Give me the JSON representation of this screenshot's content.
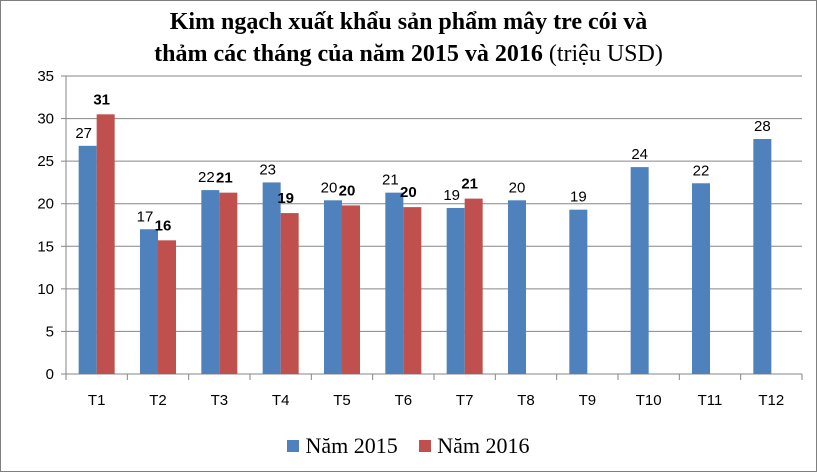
{
  "chart_data": {
    "type": "bar",
    "title_line1": "Kim ngạch xuất khẩu sản phẩm mây tre cói và",
    "title_line2": "thảm các tháng của năm 2015 và 2016",
    "title_unit": "(triệu USD)",
    "xlabel": "",
    "ylabel": "",
    "ylim": [
      0,
      35
    ],
    "yticks": [
      "0",
      "5",
      "10",
      "15",
      "20",
      "25",
      "30",
      "35"
    ],
    "categories": [
      "T1",
      "T2",
      "T3",
      "T4",
      "T5",
      "T6",
      "T7",
      "T8",
      "T9",
      "T10",
      "T11",
      "T12"
    ],
    "grid": true,
    "legend_position": "bottom",
    "series": [
      {
        "name": "Năm 2015",
        "color": "#4f81bd",
        "values": [
          26.8,
          17.0,
          21.6,
          22.5,
          20.4,
          21.3,
          19.5,
          20.4,
          19.3,
          24.3,
          22.4,
          27.6
        ],
        "labels": [
          "27",
          "17",
          "22",
          "23",
          "20",
          "21",
          "19",
          "20",
          "19",
          "24",
          "22",
          "28"
        ]
      },
      {
        "name": "Năm 2016",
        "color": "#c0504d",
        "values": [
          30.5,
          15.7,
          21.3,
          18.9,
          19.8,
          19.6,
          20.6,
          null,
          null,
          null,
          null,
          null
        ],
        "labels": [
          "31",
          "16",
          "21",
          "19",
          "20",
          "20",
          "21",
          "",
          "",
          "",
          "",
          ""
        ]
      }
    ]
  }
}
